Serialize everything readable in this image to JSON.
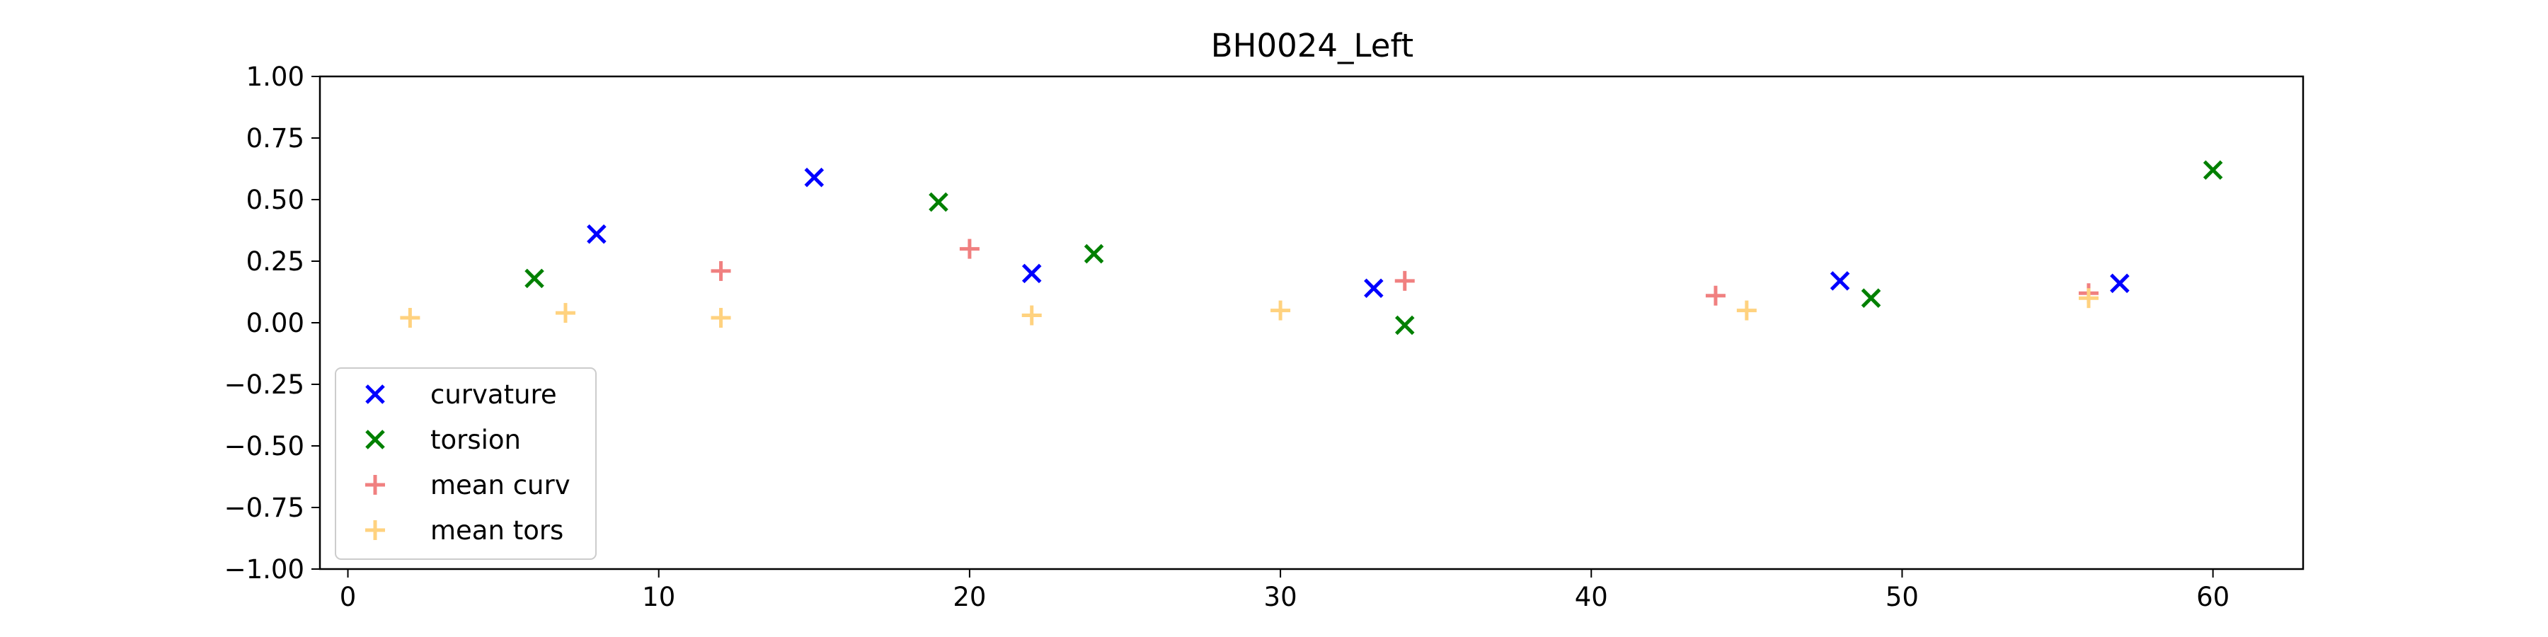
{
  "chart_data": {
    "type": "scatter",
    "title": "BH0024_Left",
    "xlabel": "",
    "ylabel": "",
    "xlim": [
      -0.9,
      62.9
    ],
    "ylim": [
      -1.0,
      1.0
    ],
    "xticks": [
      0,
      10,
      20,
      30,
      40,
      50,
      60
    ],
    "xtick_labels": [
      "0",
      "10",
      "20",
      "30",
      "40",
      "50",
      "60"
    ],
    "yticks": [
      1.0,
      0.75,
      0.5,
      0.25,
      0.0,
      -0.25,
      -0.5,
      -0.75,
      -1.0
    ],
    "ytick_labels": [
      "1.00",
      "0.75",
      "0.50",
      "0.25",
      "0.00",
      "−0.25",
      "−0.50",
      "−0.75",
      "−1.00"
    ],
    "grid": false,
    "legend_position": "lower-left",
    "series": [
      {
        "name": "curvature",
        "marker": "x",
        "color": "#0000ff",
        "points": [
          [
            8,
            0.36
          ],
          [
            15,
            0.59
          ],
          [
            22,
            0.2
          ],
          [
            33,
            0.14
          ],
          [
            48,
            0.17
          ],
          [
            57,
            0.16
          ]
        ]
      },
      {
        "name": "torsion",
        "marker": "x",
        "color": "#008000",
        "points": [
          [
            6,
            0.18
          ],
          [
            19,
            0.49
          ],
          [
            24,
            0.28
          ],
          [
            34,
            -0.01
          ],
          [
            49,
            0.1
          ],
          [
            60,
            0.62
          ]
        ]
      },
      {
        "name": "mean curv",
        "marker": "+",
        "color": "#f08080",
        "points": [
          [
            12,
            0.21
          ],
          [
            20,
            0.3
          ],
          [
            34,
            0.17
          ],
          [
            44,
            0.11
          ],
          [
            56,
            0.12
          ]
        ]
      },
      {
        "name": "mean tors",
        "marker": "+",
        "color": "#ffd27f",
        "points": [
          [
            2,
            0.02
          ],
          [
            7,
            0.04
          ],
          [
            12,
            0.02
          ],
          [
            22,
            0.03
          ],
          [
            30,
            0.05
          ],
          [
            45,
            0.05
          ],
          [
            56,
            0.1
          ]
        ]
      }
    ]
  }
}
